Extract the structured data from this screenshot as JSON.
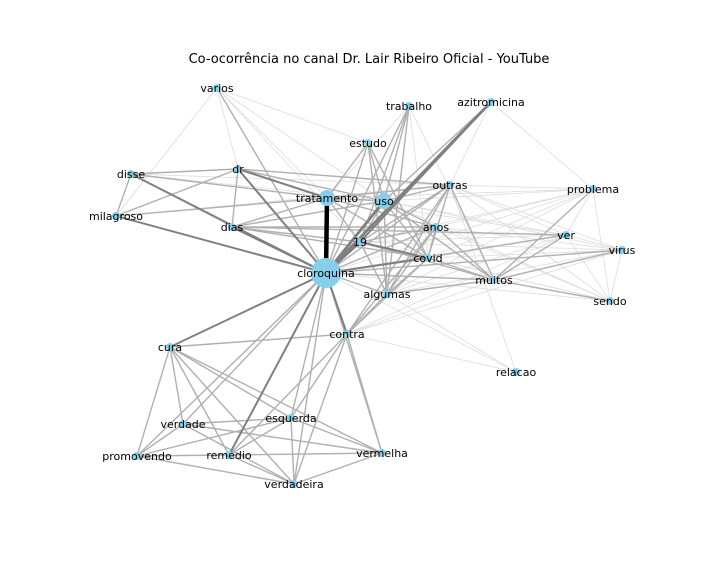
{
  "title": "Co-ocorrência no canal Dr. Lair Ribeiro Oficial - YouTube",
  "colors": {
    "node": "#87CEEB",
    "edge_dark": "#000000",
    "edge_mid": "#808080",
    "edge_light": "#b0b0b0",
    "edge_faint": "#dcdcdc"
  },
  "nodes": [
    {
      "id": "cloroquina",
      "size": "large"
    },
    {
      "id": "tratamento",
      "size": "medium"
    },
    {
      "id": "uso",
      "size": "medium"
    },
    {
      "id": "19",
      "size": "small"
    },
    {
      "id": "covid",
      "size": "small"
    },
    {
      "id": "anos",
      "size": "small"
    },
    {
      "id": "outras",
      "size": "small"
    },
    {
      "id": "algumas",
      "size": "small"
    },
    {
      "id": "muitos",
      "size": "small"
    },
    {
      "id": "contra",
      "size": "small"
    },
    {
      "id": "dias",
      "size": "small"
    },
    {
      "id": "dr",
      "size": "small"
    },
    {
      "id": "estudo",
      "size": "small"
    },
    {
      "id": "trabalho",
      "size": "small"
    },
    {
      "id": "azitromicina",
      "size": "small"
    },
    {
      "id": "varios",
      "size": "small"
    },
    {
      "id": "disse",
      "size": "small"
    },
    {
      "id": "milagroso",
      "size": "small"
    },
    {
      "id": "problema",
      "size": "small"
    },
    {
      "id": "ver",
      "size": "small"
    },
    {
      "id": "virus",
      "size": "small"
    },
    {
      "id": "sendo",
      "size": "small"
    },
    {
      "id": "relacao",
      "size": "small"
    },
    {
      "id": "cura",
      "size": "small"
    },
    {
      "id": "esquerda",
      "size": "small"
    },
    {
      "id": "verdade",
      "size": "small"
    },
    {
      "id": "promovendo",
      "size": "small"
    },
    {
      "id": "remedio",
      "size": "small"
    },
    {
      "id": "vermelha",
      "size": "small"
    },
    {
      "id": "verdadeira",
      "size": "small"
    }
  ],
  "edges": [
    [
      "cloroquina",
      "tratamento",
      4
    ],
    [
      "cloroquina",
      "uso",
      3
    ],
    [
      "cloroquina",
      "19",
      3
    ],
    [
      "cloroquina",
      "covid",
      2
    ],
    [
      "cloroquina",
      "dr",
      2
    ],
    [
      "cloroquina",
      "azitromicina",
      3
    ],
    [
      "cloroquina",
      "dias",
      2
    ],
    [
      "cloroquina",
      "milagroso",
      2
    ],
    [
      "cloroquina",
      "disse",
      2
    ],
    [
      "cloroquina",
      "varios",
      1
    ],
    [
      "cloroquina",
      "contra",
      2
    ],
    [
      "cloroquina",
      "algumas",
      1
    ],
    [
      "cloroquina",
      "anos",
      1
    ],
    [
      "cloroquina",
      "outras",
      1
    ],
    [
      "cloroquina",
      "muitos",
      1
    ],
    [
      "cloroquina",
      "estudo",
      1
    ],
    [
      "cloroquina",
      "trabalho",
      1
    ],
    [
      "cloroquina",
      "cura",
      2
    ],
    [
      "cloroquina",
      "esquerda",
      1
    ],
    [
      "cloroquina",
      "remedio",
      2
    ],
    [
      "cloroquina",
      "verdade",
      1
    ],
    [
      "cloroquina",
      "promovendo",
      1
    ],
    [
      "cloroquina",
      "vermelha",
      1
    ],
    [
      "cloroquina",
      "verdadeira",
      1
    ],
    [
      "cloroquina",
      "problema",
      0
    ],
    [
      "cloroquina",
      "ver",
      1
    ],
    [
      "cloroquina",
      "virus",
      1
    ],
    [
      "cloroquina",
      "sendo",
      0
    ],
    [
      "cloroquina",
      "relacao",
      0
    ],
    [
      "19",
      "covid",
      2
    ],
    [
      "19",
      "uso",
      1
    ],
    [
      "19",
      "tratamento",
      1
    ],
    [
      "19",
      "anos",
      1
    ],
    [
      "19",
      "outras",
      1
    ],
    [
      "19",
      "algumas",
      1
    ],
    [
      "19",
      "muitos",
      1
    ],
    [
      "19",
      "azitromicina",
      2
    ],
    [
      "19",
      "trabalho",
      1
    ],
    [
      "19",
      "problema",
      0
    ],
    [
      "19",
      "ver",
      0
    ],
    [
      "19",
      "virus",
      0
    ],
    [
      "19",
      "sendo",
      0
    ],
    [
      "tratamento",
      "dr",
      2
    ],
    [
      "tratamento",
      "uso",
      1
    ],
    [
      "tratamento",
      "disse",
      1
    ],
    [
      "tratamento",
      "milagroso",
      1
    ],
    [
      "tratamento",
      "dias",
      1
    ],
    [
      "tratamento",
      "varios",
      0
    ],
    [
      "tratamento",
      "estudo",
      1
    ],
    [
      "tratamento",
      "trabalho",
      0
    ],
    [
      "tratamento",
      "outras",
      1
    ],
    [
      "tratamento",
      "anos",
      1
    ],
    [
      "tratamento",
      "covid",
      1
    ],
    [
      "tratamento",
      "problema",
      0
    ],
    [
      "tratamento",
      "ver",
      0
    ],
    [
      "uso",
      "outras",
      1
    ],
    [
      "uso",
      "anos",
      1
    ],
    [
      "uso",
      "covid",
      1
    ],
    [
      "uso",
      "dias",
      1
    ],
    [
      "uso",
      "dr",
      1
    ],
    [
      "uso",
      "estudo",
      1
    ],
    [
      "uso",
      "trabalho",
      1
    ],
    [
      "uso",
      "azitromicina",
      1
    ],
    [
      "uso",
      "muitos",
      1
    ],
    [
      "uso",
      "algumas",
      1
    ],
    [
      "uso",
      "problema",
      0
    ],
    [
      "uso",
      "ver",
      0
    ],
    [
      "uso",
      "virus",
      0
    ],
    [
      "uso",
      "sendo",
      0
    ],
    [
      "uso",
      "disse",
      0
    ],
    [
      "dr",
      "disse",
      1
    ],
    [
      "dr",
      "milagroso",
      1
    ],
    [
      "dr",
      "dias",
      1
    ],
    [
      "dr",
      "outras",
      1
    ],
    [
      "dr",
      "varios",
      0
    ],
    [
      "dias",
      "covid",
      1
    ],
    [
      "dias",
      "anos",
      1
    ],
    [
      "dias",
      "ver",
      1
    ],
    [
      "dias",
      "19",
      1
    ],
    [
      "dias",
      "disse",
      0
    ],
    [
      "disse",
      "milagroso",
      1
    ],
    [
      "disse",
      "outras",
      0
    ],
    [
      "milagroso",
      "outras",
      0
    ],
    [
      "milagroso",
      "varios",
      0
    ],
    [
      "varios",
      "uso",
      0
    ],
    [
      "varios",
      "19",
      0
    ],
    [
      "varios",
      "estudo",
      0
    ],
    [
      "estudo",
      "algumas",
      1
    ],
    [
      "estudo",
      "covid",
      1
    ],
    [
      "trabalho",
      "algumas",
      1
    ],
    [
      "trabalho",
      "covid",
      0
    ],
    [
      "trabalho",
      "muitos",
      0
    ],
    [
      "azitromicina",
      "problema",
      0
    ],
    [
      "azitromicina",
      "outras",
      0
    ],
    [
      "outras",
      "covid",
      1
    ],
    [
      "outras",
      "algumas",
      1
    ],
    [
      "outras",
      "muitos",
      1
    ],
    [
      "outras",
      "contra",
      1
    ],
    [
      "outras",
      "problema",
      0
    ],
    [
      "outras",
      "ver",
      0
    ],
    [
      "outras",
      "virus",
      0
    ],
    [
      "outras",
      "sendo",
      0
    ],
    [
      "outras",
      "relacao",
      0
    ],
    [
      "anos",
      "covid",
      1
    ],
    [
      "anos",
      "algumas",
      1
    ],
    [
      "anos",
      "muitos",
      1
    ],
    [
      "anos",
      "contra",
      1
    ],
    [
      "anos",
      "problema",
      0
    ],
    [
      "anos",
      "virus",
      0
    ],
    [
      "anos",
      "sendo",
      0
    ],
    [
      "covid",
      "algumas",
      1
    ],
    [
      "covid",
      "muitos",
      1
    ],
    [
      "covid",
      "contra",
      1
    ],
    [
      "covid",
      "problema",
      0
    ],
    [
      "covid",
      "ver",
      0
    ],
    [
      "covid",
      "virus",
      0
    ],
    [
      "covid",
      "sendo",
      0
    ],
    [
      "algumas",
      "muitos",
      1
    ],
    [
      "algumas",
      "contra",
      1
    ],
    [
      "algumas",
      "problema",
      0
    ],
    [
      "algumas",
      "ver",
      0
    ],
    [
      "algumas",
      "virus",
      0
    ],
    [
      "algumas",
      "relacao",
      0
    ],
    [
      "muitos",
      "problema",
      1
    ],
    [
      "muitos",
      "ver",
      1
    ],
    [
      "muitos",
      "virus",
      1
    ],
    [
      "muitos",
      "sendo",
      1
    ],
    [
      "muitos",
      "contra",
      0
    ],
    [
      "problema",
      "ver",
      0
    ],
    [
      "problema",
      "sendo",
      0
    ],
    [
      "ver",
      "virus",
      0
    ],
    [
      "ver",
      "sendo",
      0
    ],
    [
      "virus",
      "sendo",
      0
    ],
    [
      "contra",
      "cura",
      1
    ],
    [
      "contra",
      "esquerda",
      1
    ],
    [
      "contra",
      "vermelha",
      1
    ],
    [
      "contra",
      "verdadeira",
      1
    ],
    [
      "contra",
      "remedio",
      1
    ],
    [
      "contra",
      "relacao",
      0
    ],
    [
      "contra",
      "ver",
      0
    ],
    [
      "contra",
      "virus",
      0
    ],
    [
      "cura",
      "verdade",
      1
    ],
    [
      "cura",
      "promovendo",
      1
    ],
    [
      "cura",
      "remedio",
      1
    ],
    [
      "cura",
      "esquerda",
      1
    ],
    [
      "cura",
      "verdadeira",
      1
    ],
    [
      "cura",
      "vermelha",
      1
    ],
    [
      "esquerda",
      "verdade",
      1
    ],
    [
      "esquerda",
      "promovendo",
      1
    ],
    [
      "esquerda",
      "remedio",
      1
    ],
    [
      "esquerda",
      "vermelha",
      1
    ],
    [
      "esquerda",
      "verdadeira",
      1
    ],
    [
      "verdade",
      "promovendo",
      1
    ],
    [
      "verdade",
      "vermelha",
      1
    ],
    [
      "verdade",
      "verdadeira",
      1
    ],
    [
      "promovendo",
      "remedio",
      1
    ],
    [
      "promovendo",
      "verdadeira",
      1
    ],
    [
      "remedio",
      "vermelha",
      1
    ],
    [
      "remedio",
      "verdadeira",
      1
    ],
    [
      "vermelha",
      "verdadeira",
      1
    ]
  ]
}
